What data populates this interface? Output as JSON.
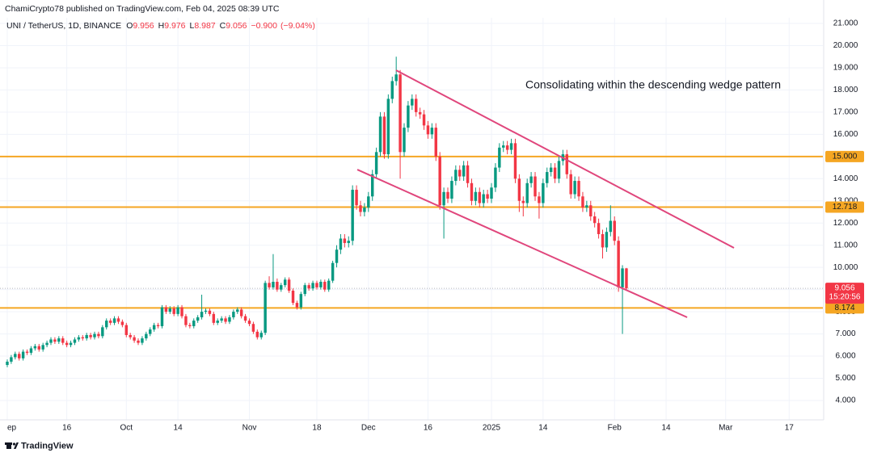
{
  "header": {
    "publisher": "ChamiCrypto78 published on TradingView.com, Feb 04, 2025 08:39 UTC",
    "footer": "TradingView"
  },
  "chart_data": {
    "type": "candlestick",
    "symbol": "UNI / TetherUS, 1D, BINANCE",
    "ohlc_legend": [
      {
        "label": "O",
        "value": 9.956
      },
      {
        "label": "H",
        "value": 9.976
      },
      {
        "label": "L",
        "value": 8.987
      },
      {
        "label": "C",
        "value": 9.056
      }
    ],
    "change": {
      "value": -0.9,
      "label": "−0.900"
    },
    "change_pct": {
      "value": -9.04,
      "label": "(−9.04%)"
    },
    "annotation": "Consolidating within the descending wedge pattern",
    "x": [
      0,
      1,
      2,
      3,
      4,
      5,
      6,
      7,
      8,
      9,
      10,
      11,
      12,
      13,
      14,
      15,
      16,
      17,
      18,
      19,
      20,
      21,
      22,
      23,
      24,
      25,
      26,
      27,
      28,
      29,
      30,
      31,
      32,
      33,
      34,
      35,
      36,
      37,
      38,
      39,
      40,
      41,
      42,
      43,
      44,
      45,
      46,
      47,
      48,
      49,
      50,
      51,
      52,
      53,
      54,
      55,
      56,
      57,
      58,
      59,
      60,
      61,
      62,
      63,
      64,
      65,
      66,
      67,
      68,
      69,
      70,
      71,
      72,
      73,
      74,
      75,
      76,
      77,
      78,
      79,
      80,
      81,
      82,
      83,
      84,
      85,
      86,
      87,
      88,
      89,
      90,
      91,
      92,
      93,
      94,
      95,
      96,
      97,
      98,
      99,
      100,
      101,
      102,
      103,
      104,
      105,
      106,
      107,
      108,
      109,
      110,
      111,
      112,
      113,
      114,
      115,
      116,
      117,
      118,
      119,
      120,
      121,
      122,
      123,
      124,
      125,
      126,
      127,
      128,
      129,
      130,
      131,
      132,
      133,
      134,
      135,
      136,
      137,
      138,
      139,
      140,
      141,
      142,
      143,
      144,
      145,
      146,
      147,
      148,
      149,
      150,
      151,
      152,
      153,
      154,
      155,
      156
    ],
    "open": [
      5.6,
      5.75,
      5.95,
      6.1,
      5.9,
      6.2,
      6.15,
      6.35,
      6.45,
      6.3,
      6.5,
      6.6,
      6.75,
      6.65,
      6.8,
      6.6,
      6.5,
      6.6,
      6.75,
      6.85,
      6.8,
      6.95,
      6.85,
      7.0,
      6.9,
      7.3,
      7.6,
      7.5,
      7.7,
      7.55,
      7.4,
      6.95,
      6.85,
      6.7,
      6.6,
      6.8,
      7.0,
      7.2,
      7.4,
      7.35,
      8.2,
      8.0,
      8.15,
      7.9,
      8.2,
      7.8,
      7.4,
      7.35,
      7.6,
      7.75,
      8.0,
      8.05,
      7.9,
      7.5,
      7.6,
      7.7,
      7.55,
      7.75,
      8.0,
      8.1,
      7.8,
      7.6,
      7.45,
      7.1,
      6.85,
      7.05,
      9.3,
      9.1,
      9.35,
      9.0,
      9.2,
      9.45,
      8.95,
      8.4,
      8.2,
      8.8,
      9.2,
      9.05,
      9.3,
      9.1,
      9.35,
      9.0,
      9.4,
      10.2,
      10.8,
      11.3,
      11.1,
      11.2,
      13.5,
      12.8,
      12.5,
      12.7,
      13.2,
      14.2,
      15.2,
      16.8,
      15.1,
      17.6,
      18.4,
      18.7,
      15.2,
      16.3,
      17.3,
      17.6,
      17.0,
      16.9,
      16.4,
      16.0,
      16.3,
      15.0,
      12.8,
      13.4,
      13.1,
      13.9,
      14.4,
      14.1,
      14.6,
      13.8,
      13.0,
      13.4,
      12.9,
      13.3,
      13.1,
      13.6,
      14.5,
      15.4,
      15.5,
      15.3,
      15.6,
      14.0,
      13.0,
      12.9,
      13.8,
      14.1,
      13.2,
      12.9,
      13.8,
      14.3,
      14.5,
      14.0,
      14.8,
      15.1,
      14.2,
      13.3,
      13.9,
      13.2,
      12.7,
      12.8,
      12.3,
      12.0,
      11.5,
      10.9,
      11.6,
      12.1,
      11.2,
      9.1,
      9.956
    ],
    "high": [
      5.85,
      6.05,
      6.2,
      6.2,
      6.3,
      6.3,
      6.45,
      6.55,
      6.55,
      6.6,
      6.7,
      6.85,
      6.85,
      6.9,
      6.9,
      6.7,
      6.7,
      6.85,
      6.95,
      6.95,
      7.05,
      7.05,
      7.1,
      7.1,
      7.4,
      7.7,
      7.7,
      7.8,
      7.8,
      7.65,
      7.5,
      7.05,
      6.95,
      6.8,
      6.9,
      7.1,
      7.3,
      7.5,
      7.5,
      8.3,
      8.3,
      8.25,
      8.25,
      8.3,
      8.3,
      7.9,
      7.5,
      7.7,
      7.85,
      8.77,
      8.15,
      8.15,
      8.0,
      7.7,
      7.8,
      7.8,
      7.85,
      8.1,
      8.2,
      8.2,
      7.9,
      7.7,
      7.55,
      7.2,
      7.15,
      9.4,
      9.6,
      10.6,
      9.5,
      9.3,
      9.55,
      9.55,
      9.05,
      8.5,
      8.9,
      9.3,
      9.3,
      9.4,
      9.4,
      9.45,
      9.45,
      9.5,
      10.3,
      11.0,
      11.5,
      11.5,
      11.4,
      13.7,
      13.7,
      13.0,
      12.9,
      13.4,
      14.4,
      15.4,
      17.0,
      17.0,
      17.8,
      18.6,
      19.5,
      18.9,
      16.5,
      17.5,
      17.8,
      17.8,
      17.2,
      17.1,
      16.6,
      16.5,
      16.5,
      15.2,
      13.6,
      13.6,
      14.1,
      14.6,
      14.6,
      14.8,
      14.8,
      14.0,
      13.6,
      13.6,
      13.5,
      13.5,
      13.8,
      14.7,
      15.6,
      15.7,
      15.7,
      15.8,
      15.8,
      14.2,
      13.2,
      14.0,
      14.3,
      14.3,
      13.4,
      14.0,
      14.5,
      14.7,
      14.7,
      15.0,
      15.3,
      15.3,
      14.4,
      14.1,
      14.1,
      13.4,
      13.0,
      13.0,
      12.5,
      12.2,
      11.7,
      11.8,
      12.8,
      12.3,
      11.4,
      10.1,
      9.976
    ],
    "low": [
      5.5,
      5.65,
      5.85,
      5.8,
      5.8,
      6.05,
      6.05,
      6.25,
      6.2,
      6.2,
      6.4,
      6.5,
      6.55,
      6.55,
      6.5,
      6.4,
      6.4,
      6.5,
      6.65,
      6.7,
      6.7,
      6.75,
      6.75,
      6.8,
      6.8,
      7.2,
      7.4,
      7.4,
      7.45,
      7.3,
      6.85,
      6.75,
      6.6,
      6.5,
      6.5,
      6.7,
      6.9,
      7.1,
      7.25,
      7.25,
      7.9,
      7.9,
      7.8,
      7.8,
      7.7,
      7.3,
      7.25,
      7.25,
      7.5,
      7.65,
      7.9,
      7.8,
      7.4,
      7.4,
      7.5,
      7.45,
      7.45,
      7.65,
      7.9,
      7.7,
      7.5,
      7.35,
      7.0,
      6.75,
      6.75,
      6.95,
      9.0,
      9.0,
      8.9,
      8.9,
      9.1,
      8.85,
      8.3,
      8.1,
      8.1,
      8.7,
      8.95,
      8.95,
      9.0,
      9.0,
      8.9,
      8.9,
      9.3,
      10.0,
      10.6,
      10.9,
      10.9,
      11.0,
      12.6,
      12.3,
      12.3,
      12.5,
      13.0,
      14.0,
      15.0,
      14.9,
      14.9,
      17.4,
      18.2,
      14.0,
      15.0,
      16.1,
      17.1,
      16.8,
      16.7,
      16.2,
      15.8,
      15.8,
      14.8,
      12.6,
      11.3,
      12.9,
      12.9,
      13.7,
      13.9,
      13.9,
      13.6,
      12.8,
      12.8,
      12.7,
      12.7,
      12.9,
      12.9,
      13.4,
      14.3,
      15.2,
      15.1,
      15.1,
      13.8,
      12.5,
      12.3,
      12.7,
      13.6,
      13.0,
      12.2,
      12.7,
      13.6,
      14.1,
      13.8,
      13.8,
      14.6,
      14.0,
      13.1,
      13.1,
      13.0,
      12.5,
      12.5,
      12.1,
      11.8,
      11.3,
      10.4,
      10.7,
      11.4,
      11.0,
      8.9,
      7.0,
      8.987
    ],
    "close": [
      5.75,
      5.95,
      6.1,
      5.9,
      6.2,
      6.15,
      6.35,
      6.45,
      6.3,
      6.5,
      6.6,
      6.75,
      6.65,
      6.8,
      6.6,
      6.5,
      6.6,
      6.75,
      6.85,
      6.8,
      6.95,
      6.85,
      7.0,
      6.9,
      7.3,
      7.6,
      7.5,
      7.7,
      7.55,
      7.4,
      6.95,
      6.85,
      6.7,
      6.6,
      6.8,
      7.0,
      7.2,
      7.4,
      7.35,
      8.2,
      8.0,
      8.15,
      7.9,
      8.2,
      7.8,
      7.4,
      7.35,
      7.6,
      7.75,
      8.0,
      8.05,
      7.9,
      7.5,
      7.6,
      7.7,
      7.55,
      7.75,
      8.0,
      8.1,
      7.8,
      7.6,
      7.45,
      7.1,
      6.85,
      7.05,
      9.3,
      9.1,
      9.35,
      9.0,
      9.2,
      9.45,
      8.95,
      8.4,
      8.2,
      8.8,
      9.2,
      9.05,
      9.3,
      9.1,
      9.35,
      9.0,
      9.4,
      10.2,
      10.8,
      11.3,
      11.1,
      11.2,
      13.5,
      12.8,
      12.5,
      12.7,
      13.2,
      14.2,
      15.2,
      16.8,
      15.1,
      17.6,
      18.4,
      18.7,
      15.2,
      16.3,
      17.3,
      17.6,
      17.0,
      16.9,
      16.4,
      16.0,
      16.3,
      15.0,
      12.8,
      13.4,
      13.1,
      13.9,
      14.4,
      14.1,
      14.6,
      13.8,
      13.0,
      13.4,
      12.9,
      13.3,
      13.1,
      13.6,
      14.5,
      15.4,
      15.5,
      15.3,
      15.6,
      14.0,
      13.0,
      12.9,
      13.8,
      14.1,
      13.2,
      12.9,
      13.8,
      14.3,
      14.5,
      14.0,
      14.8,
      15.1,
      14.2,
      13.3,
      13.9,
      13.2,
      12.7,
      12.8,
      12.3,
      12.0,
      11.5,
      10.9,
      11.6,
      12.1,
      11.2,
      9.1,
      9.956,
      9.056
    ],
    "up_color": "#089981",
    "down_color": "#f23645",
    "xlim": [
      -1.83,
      205.5
    ],
    "xticks": [
      {
        "value": 0,
        "label": "ep"
      },
      {
        "value": 15,
        "label": "16"
      },
      {
        "value": 30,
        "label": "Oct"
      },
      {
        "value": 43,
        "label": "14"
      },
      {
        "value": 61,
        "label": "Nov"
      },
      {
        "value": 78,
        "label": "18"
      },
      {
        "value": 91,
        "label": "Dec"
      },
      {
        "value": 106,
        "label": "16"
      },
      {
        "value": 122,
        "label": "2025"
      },
      {
        "value": 135,
        "label": "14"
      },
      {
        "value": 153,
        "label": "Feb"
      },
      {
        "value": 166,
        "label": "14"
      },
      {
        "value": 181,
        "label": "Mar"
      },
      {
        "value": 197,
        "label": "17"
      }
    ],
    "ylim": [
      3.126,
      21.255
    ],
    "yticks": [
      {
        "value": 4,
        "label": "4.000"
      },
      {
        "value": 5,
        "label": "5.000"
      },
      {
        "value": 6,
        "label": "6.000"
      },
      {
        "value": 7,
        "label": "7.000"
      },
      {
        "value": 8,
        "label": "8.000"
      },
      {
        "value": 9,
        "label": "9.000"
      },
      {
        "value": 10,
        "label": "10.000"
      },
      {
        "value": 11,
        "label": "11.000"
      },
      {
        "value": 12,
        "label": "12.000"
      },
      {
        "value": 13,
        "label": "13.000"
      },
      {
        "value": 14,
        "label": "14.000"
      },
      {
        "value": 15,
        "label": "15.000"
      },
      {
        "value": 16,
        "label": "16.000"
      },
      {
        "value": 17,
        "label": "17.000"
      },
      {
        "value": 18,
        "label": "18.000"
      },
      {
        "value": 19,
        "label": "19.000"
      },
      {
        "value": 20,
        "label": "20.000"
      },
      {
        "value": 21,
        "label": "21.000"
      }
    ],
    "grid": true,
    "levels": [
      {
        "value": 15,
        "label": "15.000"
      },
      {
        "value": 12.718,
        "label": "12.718"
      },
      {
        "value": 8.174,
        "label": "8.174"
      }
    ],
    "level_color": "#f5a623",
    "last_price": {
      "value": 9.056,
      "label": "9.056"
    },
    "countdown": "15:20:56",
    "trendlines": [
      {
        "x": [
          97.96,
          183.1
        ],
        "y": [
          18.89,
          10.88
        ]
      },
      {
        "x": [
          88.2,
          171.3
        ],
        "y": [
          14.41,
          7.75
        ]
      }
    ],
    "trendline_color": "#e0467c"
  }
}
